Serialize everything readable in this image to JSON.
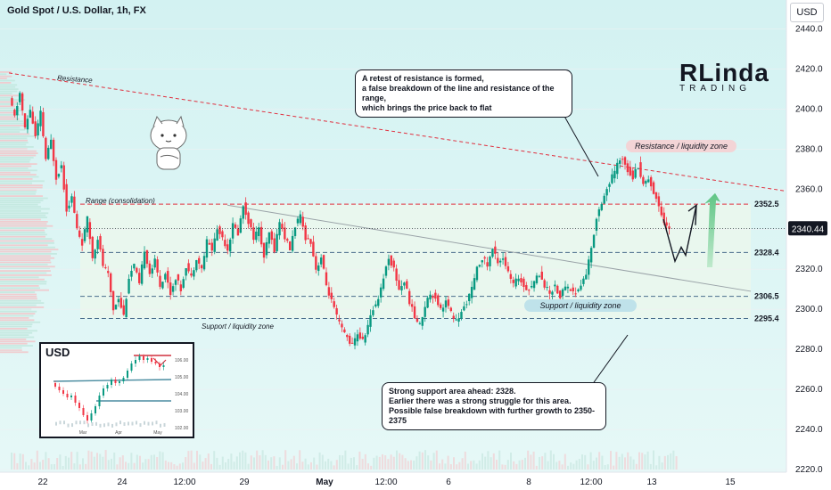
{
  "header": {
    "title": "Gold Spot / U.S. Dollar, 1h, FX",
    "currency_button": "USD"
  },
  "chart_data": {
    "type": "candlestick",
    "title": "Gold Spot / U.S. Dollar, 1h, FX",
    "ylim": [
      2220,
      2450
    ],
    "y_ticks": [
      2440.0,
      2420.0,
      2400.0,
      2380.0,
      2360.0,
      2340.0,
      2320.0,
      2300.0,
      2280.0,
      2260.0,
      2240.0,
      2220.0
    ],
    "x_ticks": [
      "22",
      "24",
      "12:00",
      "29",
      "May",
      "12:00",
      "6",
      "8",
      "12:00",
      "13",
      "15"
    ],
    "current_price": "2340.44",
    "levels": [
      {
        "value": 2352.5,
        "label": "2352.5",
        "color": "#e0303f",
        "style": "dashed"
      },
      {
        "value": 2328.4,
        "label": "2328.4",
        "color": "#4a6e8c",
        "style": "dashed"
      },
      {
        "value": 2306.5,
        "label": "2306.5",
        "color": "#4a6e8c",
        "style": "dashed"
      },
      {
        "value": 2295.4,
        "label": "2295.4",
        "color": "#4a6e8c",
        "style": "dashed"
      }
    ],
    "range_box": {
      "low": 2295.4,
      "high": 2352.5,
      "label": "Range (consolidation)"
    },
    "resistance_line": {
      "label": "Resistance",
      "start": 2418,
      "end": 2359
    },
    "price_path": [
      2405,
      2396,
      2408,
      2390,
      2400,
      2386,
      2398,
      2375,
      2384,
      2366,
      2372,
      2350,
      2356,
      2340,
      2333,
      2345,
      2326,
      2336,
      2322,
      2317,
      2300,
      2306,
      2297,
      2316,
      2322,
      2312,
      2330,
      2318,
      2324,
      2312,
      2318,
      2308,
      2316,
      2310,
      2322,
      2316,
      2326,
      2320,
      2334,
      2330,
      2340,
      2336,
      2330,
      2342,
      2338,
      2352,
      2344,
      2336,
      2340,
      2326,
      2338,
      2330,
      2344,
      2336,
      2330,
      2342,
      2346,
      2336,
      2334,
      2320,
      2326,
      2312,
      2304,
      2296,
      2290,
      2286,
      2282,
      2288,
      2284,
      2292,
      2300,
      2306,
      2316,
      2326,
      2320,
      2310,
      2314,
      2304,
      2296,
      2292,
      2302,
      2308,
      2306,
      2300,
      2304,
      2298,
      2294,
      2298,
      2304,
      2310,
      2320,
      2326,
      2322,
      2330,
      2324,
      2326,
      2318,
      2312,
      2316,
      2312,
      2310,
      2314,
      2318,
      2312,
      2308,
      2312,
      2306,
      2312,
      2310,
      2308,
      2312,
      2318,
      2330,
      2346,
      2354,
      2360,
      2366,
      2372,
      2376,
      2370,
      2366,
      2372,
      2362,
      2366,
      2358,
      2352,
      2344,
      2340
    ],
    "series": [
      {
        "name": "Gold Spot / U.S. Dollar",
        "color_up": "#089981",
        "color_down": "#f23645"
      }
    ],
    "annotations": {
      "resistance_zone": "Resistance / liquidity zone",
      "support_zone": "Support / liquidity zone",
      "support_line_label": "Support / liquidity zone"
    }
  },
  "notes": {
    "top": [
      "A retest of resistance is formed,",
      "a false breakdown of the line and resistance of the range,",
      "which brings the price back to flat"
    ],
    "bottom": [
      "Strong support area ahead: 2328.",
      "Earlier there was a strong struggle for this area.",
      "Possible false breakdown with further growth to 2350-2375"
    ]
  },
  "inset": {
    "title": "USD",
    "y_ticks": [
      "106.00",
      "105.00",
      "104.00",
      "103.00",
      "102.00"
    ],
    "x_ticks": [
      "Mar",
      "Apr",
      "May"
    ]
  },
  "logo": {
    "main": "RLinda",
    "sub": "TRADING"
  },
  "colors": {
    "up": "#089981",
    "down": "#f23645",
    "range_fill": "#e9f7ee",
    "sky": "#cdeef0",
    "resistance": "#e0303f",
    "support_tag": "#bfe2ea",
    "resistance_tag": "#f3d4d6",
    "arrow_green": "#7fd29b"
  }
}
